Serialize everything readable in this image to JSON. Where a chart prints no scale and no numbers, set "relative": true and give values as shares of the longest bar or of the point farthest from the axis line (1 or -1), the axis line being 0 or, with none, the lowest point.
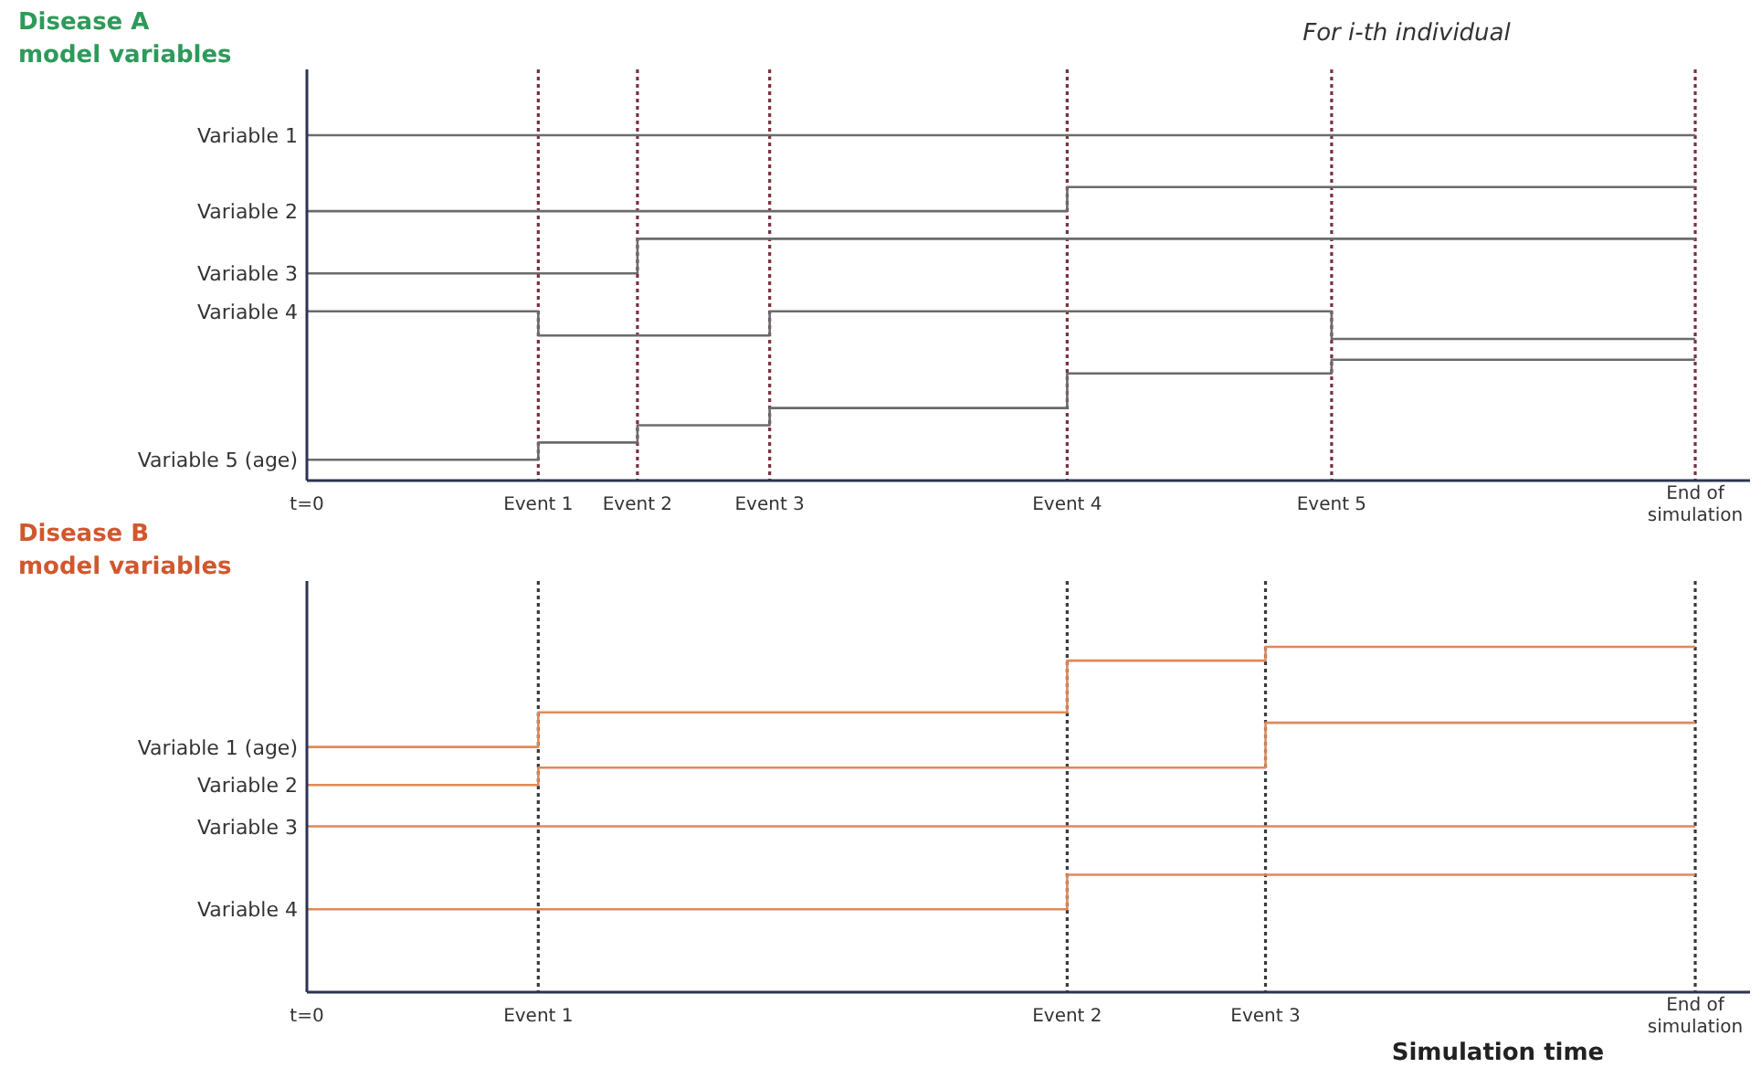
{
  "chart_data": [
    {
      "type": "step",
      "title": "Disease A model variables",
      "relative": true,
      "categories": [
        "t=0",
        null,
        null,
        null,
        null,
        null,
        null,
        "Event 1",
        null,
        null,
        "Event 2",
        null,
        null,
        null,
        "Event 3",
        null,
        null,
        null,
        null,
        null,
        null,
        null,
        null,
        "Event 4",
        null,
        null,
        null,
        null,
        null,
        null,
        null,
        "Event 5",
        null,
        null,
        null,
        null,
        null,
        null,
        null,
        null,
        null,
        null,
        "End of simulation"
      ],
      "annotations": [
        "For i-th individual"
      ],
      "ref_lines": [
        {
          "axis": "x",
          "value": "Event 1",
          "color": "#7a3040",
          "line_style": "dotted"
        },
        {
          "axis": "x",
          "value": "Event 2",
          "color": "#7a3040",
          "line_style": "dotted"
        },
        {
          "axis": "x",
          "value": "Event 3",
          "color": "#7a3040",
          "line_style": "dotted"
        },
        {
          "axis": "x",
          "value": "Event 4",
          "color": "#7a3040",
          "line_style": "dotted"
        },
        {
          "axis": "x",
          "value": "Event 5",
          "color": "#7a3040",
          "line_style": "dotted"
        },
        {
          "axis": "x",
          "value": "End of simulation",
          "color": "#7a3040",
          "line_style": "dotted"
        }
      ],
      "series": [
        {
          "name": "Variable 1",
          "color": "#6b6b6b",
          "values": [
            1,
            1,
            1,
            1,
            1,
            1,
            1,
            1,
            1,
            1,
            1,
            1,
            1,
            1,
            1,
            1,
            1,
            1,
            1,
            1,
            1,
            1,
            1,
            1,
            1,
            1,
            1,
            1,
            1,
            1,
            1,
            1,
            1,
            1,
            1,
            1,
            1,
            1,
            1,
            1,
            1,
            1,
            1
          ]
        },
        {
          "name": "Variable 2",
          "color": "#6b6b6b",
          "values": [
            0.78,
            0.78,
            0.78,
            0.78,
            0.78,
            0.78,
            0.78,
            0.78,
            0.78,
            0.78,
            0.78,
            0.78,
            0.78,
            0.78,
            0.78,
            0.78,
            0.78,
            0.78,
            0.78,
            0.78,
            0.78,
            0.78,
            0.78,
            0.85,
            0.85,
            0.85,
            0.85,
            0.85,
            0.85,
            0.85,
            0.85,
            0.85,
            0.85,
            0.85,
            0.85,
            0.85,
            0.85,
            0.85,
            0.85,
            0.85,
            0.85,
            0.85,
            0.85
          ]
        },
        {
          "name": "Variable 3",
          "color": "#6b6b6b",
          "values": [
            0.6,
            0.6,
            0.6,
            0.6,
            0.6,
            0.6,
            0.6,
            0.6,
            0.6,
            0.6,
            0.7,
            0.7,
            0.7,
            0.7,
            0.7,
            0.7,
            0.7,
            0.7,
            0.7,
            0.7,
            0.7,
            0.7,
            0.7,
            0.7,
            0.7,
            0.7,
            0.7,
            0.7,
            0.7,
            0.7,
            0.7,
            0.7,
            0.7,
            0.7,
            0.7,
            0.7,
            0.7,
            0.7,
            0.7,
            0.7,
            0.7,
            0.7,
            0.7
          ]
        },
        {
          "name": "Variable 4",
          "color": "#6b6b6b",
          "values": [
            0.49,
            0.49,
            0.49,
            0.49,
            0.49,
            0.49,
            0.49,
            0.42,
            0.42,
            0.42,
            0.42,
            0.42,
            0.42,
            0.42,
            0.49,
            0.49,
            0.49,
            0.49,
            0.49,
            0.49,
            0.49,
            0.49,
            0.49,
            0.49,
            0.49,
            0.49,
            0.49,
            0.49,
            0.49,
            0.49,
            0.49,
            0.41,
            0.41,
            0.41,
            0.41,
            0.41,
            0.41,
            0.41,
            0.41,
            0.41,
            0.41,
            0.41,
            0.41
          ]
        },
        {
          "name": "Variable 5 (age)",
          "color": "#6b6b6b",
          "values": [
            0.06,
            0.06,
            0.06,
            0.06,
            0.06,
            0.06,
            0.06,
            0.11,
            0.11,
            0.11,
            0.16,
            0.16,
            0.16,
            0.16,
            0.21,
            0.21,
            0.21,
            0.21,
            0.21,
            0.21,
            0.21,
            0.21,
            0.21,
            0.31,
            0.31,
            0.31,
            0.31,
            0.31,
            0.31,
            0.31,
            0.31,
            0.35,
            0.35,
            0.35,
            0.35,
            0.35,
            0.35,
            0.35,
            0.35,
            0.35,
            0.35,
            0.35,
            0.35
          ]
        }
      ]
    },
    {
      "type": "step",
      "title": "Disease B model variables",
      "xlabel": "Simulation time",
      "relative": true,
      "categories": [
        "t=0",
        null,
        null,
        null,
        null,
        null,
        null,
        "Event 1",
        null,
        null,
        null,
        null,
        null,
        null,
        null,
        null,
        null,
        null,
        null,
        null,
        null,
        null,
        null,
        "Event 2",
        null,
        null,
        null,
        null,
        null,
        "Event 3",
        null,
        null,
        null,
        null,
        null,
        null,
        null,
        null,
        null,
        null,
        null,
        null,
        "End of simulation"
      ],
      "ref_lines": [
        {
          "axis": "x",
          "value": "Event 1",
          "color": "#3a3a3a",
          "line_style": "dotted"
        },
        {
          "axis": "x",
          "value": "Event 2",
          "color": "#3a3a3a",
          "line_style": "dotted"
        },
        {
          "axis": "x",
          "value": "Event 3",
          "color": "#3a3a3a",
          "line_style": "dotted"
        },
        {
          "axis": "x",
          "value": "End of simulation",
          "color": "#3a3a3a",
          "line_style": "dotted"
        }
      ],
      "series": [
        {
          "name": "Variable 1 (age)",
          "color": "#e0895a",
          "values": [
            0.71,
            0.71,
            0.71,
            0.71,
            0.71,
            0.71,
            0.71,
            0.81,
            0.81,
            0.81,
            0.81,
            0.81,
            0.81,
            0.81,
            0.81,
            0.81,
            0.81,
            0.81,
            0.81,
            0.81,
            0.81,
            0.81,
            0.81,
            0.96,
            0.96,
            0.96,
            0.96,
            0.96,
            0.96,
            1,
            1,
            1,
            1,
            1,
            1,
            1,
            1,
            1,
            1,
            1,
            1,
            1,
            1
          ]
        },
        {
          "name": "Variable 2",
          "color": "#e0895a",
          "values": [
            0.6,
            0.6,
            0.6,
            0.6,
            0.6,
            0.6,
            0.6,
            0.65,
            0.65,
            0.65,
            0.65,
            0.65,
            0.65,
            0.65,
            0.65,
            0.65,
            0.65,
            0.65,
            0.65,
            0.65,
            0.65,
            0.65,
            0.65,
            0.65,
            0.65,
            0.65,
            0.65,
            0.65,
            0.65,
            0.78,
            0.78,
            0.78,
            0.78,
            0.78,
            0.78,
            0.78,
            0.78,
            0.78,
            0.78,
            0.78,
            0.78,
            0.78,
            0.78
          ]
        },
        {
          "name": "Variable 3",
          "color": "#e0895a",
          "values": [
            0.48,
            0.48,
            0.48,
            0.48,
            0.48,
            0.48,
            0.48,
            0.48,
            0.48,
            0.48,
            0.48,
            0.48,
            0.48,
            0.48,
            0.48,
            0.48,
            0.48,
            0.48,
            0.48,
            0.48,
            0.48,
            0.48,
            0.48,
            0.48,
            0.48,
            0.48,
            0.48,
            0.48,
            0.48,
            0.48,
            0.48,
            0.48,
            0.48,
            0.48,
            0.48,
            0.48,
            0.48,
            0.48,
            0.48,
            0.48,
            0.48,
            0.48,
            0.48
          ]
        },
        {
          "name": "Variable 4",
          "color": "#e0895a",
          "values": [
            0.24,
            0.24,
            0.24,
            0.24,
            0.24,
            0.24,
            0.24,
            0.24,
            0.24,
            0.24,
            0.24,
            0.24,
            0.24,
            0.24,
            0.24,
            0.24,
            0.24,
            0.24,
            0.24,
            0.24,
            0.24,
            0.24,
            0.24,
            0.34,
            0.34,
            0.34,
            0.34,
            0.34,
            0.34,
            0.34,
            0.34,
            0.34,
            0.34,
            0.34,
            0.34,
            0.34,
            0.34,
            0.34,
            0.34,
            0.34,
            0.34,
            0.34,
            0.34
          ]
        }
      ]
    }
  ]
}
